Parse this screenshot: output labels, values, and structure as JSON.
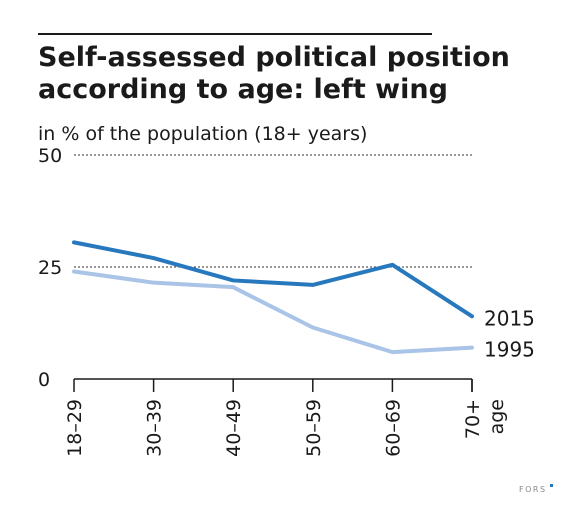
{
  "chart_data": {
    "type": "line",
    "title": "Self-assessed political position according to age: left wing",
    "title_lines": [
      "Self-assessed political position",
      "according to age: left wing"
    ],
    "subtitle": "in % of the population (18+ years)",
    "xlabel": "age",
    "ylabel": "",
    "categories": [
      "18–29",
      "30–39",
      "40–49",
      "50–59",
      "60–69",
      "70+"
    ],
    "yticks": [
      0,
      25,
      50
    ],
    "ylim": [
      0,
      50
    ],
    "grid": "dashed lines at 25 and 50",
    "series": [
      {
        "name": "2015",
        "values": [
          30.5,
          27,
          22,
          21,
          25.5,
          14
        ],
        "color": "#2878be"
      },
      {
        "name": "1995",
        "values": [
          24,
          21.5,
          20.5,
          11.5,
          6,
          7
        ],
        "color": "#a9c4e6"
      }
    ]
  },
  "logo": {
    "text": "FORS",
    "color": "#8a8a8a"
  }
}
